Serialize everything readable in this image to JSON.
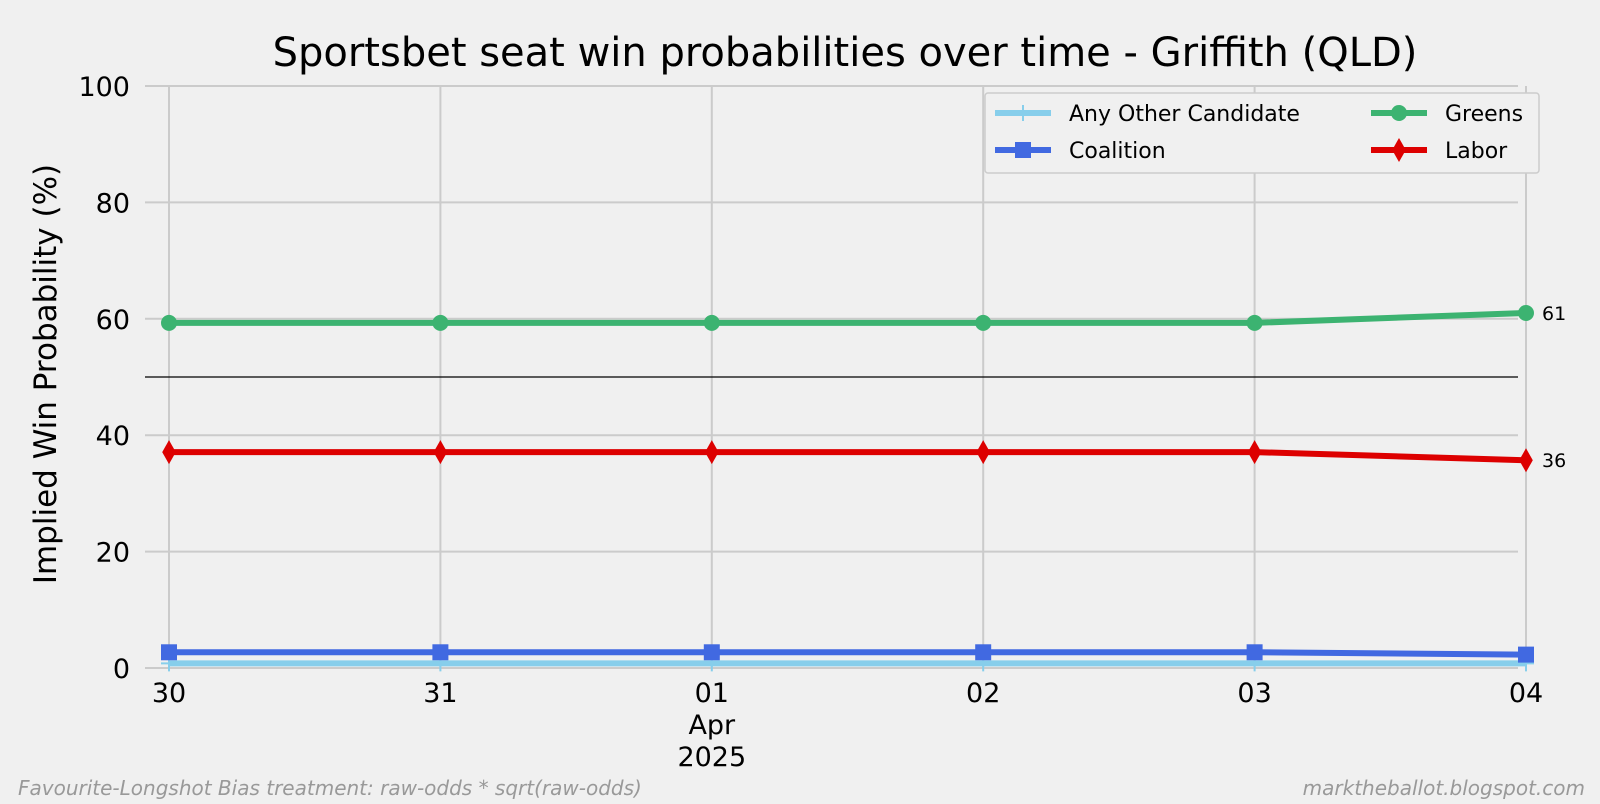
{
  "colors": {
    "background": "#f0f0f0",
    "grid": "#cbcbcb",
    "text": "#000000",
    "footnote": "#999999",
    "majority_line": "#000000"
  },
  "chart_data": {
    "type": "line",
    "title": "Sportsbet seat win probabilities over time - Griffith (QLD)",
    "ylabel": "Implied Win Probability (%)",
    "xlabel": "",
    "ylim": [
      0,
      100
    ],
    "yticks": [
      "0",
      "20",
      "40",
      "60",
      "80",
      "100"
    ],
    "ytick_values": [
      0,
      20,
      40,
      60,
      80,
      100
    ],
    "x": [
      "2025-03-30",
      "2025-03-31",
      "2025-04-01",
      "2025-04-02",
      "2025-04-03",
      "2025-04-04"
    ],
    "xtick_labels": [
      [
        "30"
      ],
      [
        "31"
      ],
      [
        "01",
        "Apr",
        "2025"
      ],
      [
        "02"
      ],
      [
        "03"
      ],
      [
        "04"
      ]
    ],
    "grid": true,
    "reference_line": 50,
    "legend_position": "top-right",
    "series": [
      {
        "name": "Any Other Candidate",
        "color": "#87ceeb",
        "marker": "plus",
        "values": [
          0.8,
          0.8,
          0.8,
          0.8,
          0.8,
          0.8
        ]
      },
      {
        "name": "Coalition",
        "color": "#4169e1",
        "marker": "square",
        "values": [
          2.7,
          2.7,
          2.7,
          2.7,
          2.7,
          2.3
        ]
      },
      {
        "name": "Greens",
        "color": "#3cb371",
        "marker": "circle",
        "values": [
          59.3,
          59.3,
          59.3,
          59.3,
          59.3,
          61
        ],
        "end_label": "61"
      },
      {
        "name": "Labor",
        "color": "#dd0000",
        "marker": "diamond",
        "values": [
          37.1,
          37.1,
          37.1,
          37.1,
          37.1,
          35.7
        ],
        "end_label": "36"
      }
    ]
  },
  "footnote_left": "Favourite-Longshot Bias treatment: raw-odds * sqrt(raw-odds)",
  "footnote_right": "marktheballot.blogspot.com"
}
